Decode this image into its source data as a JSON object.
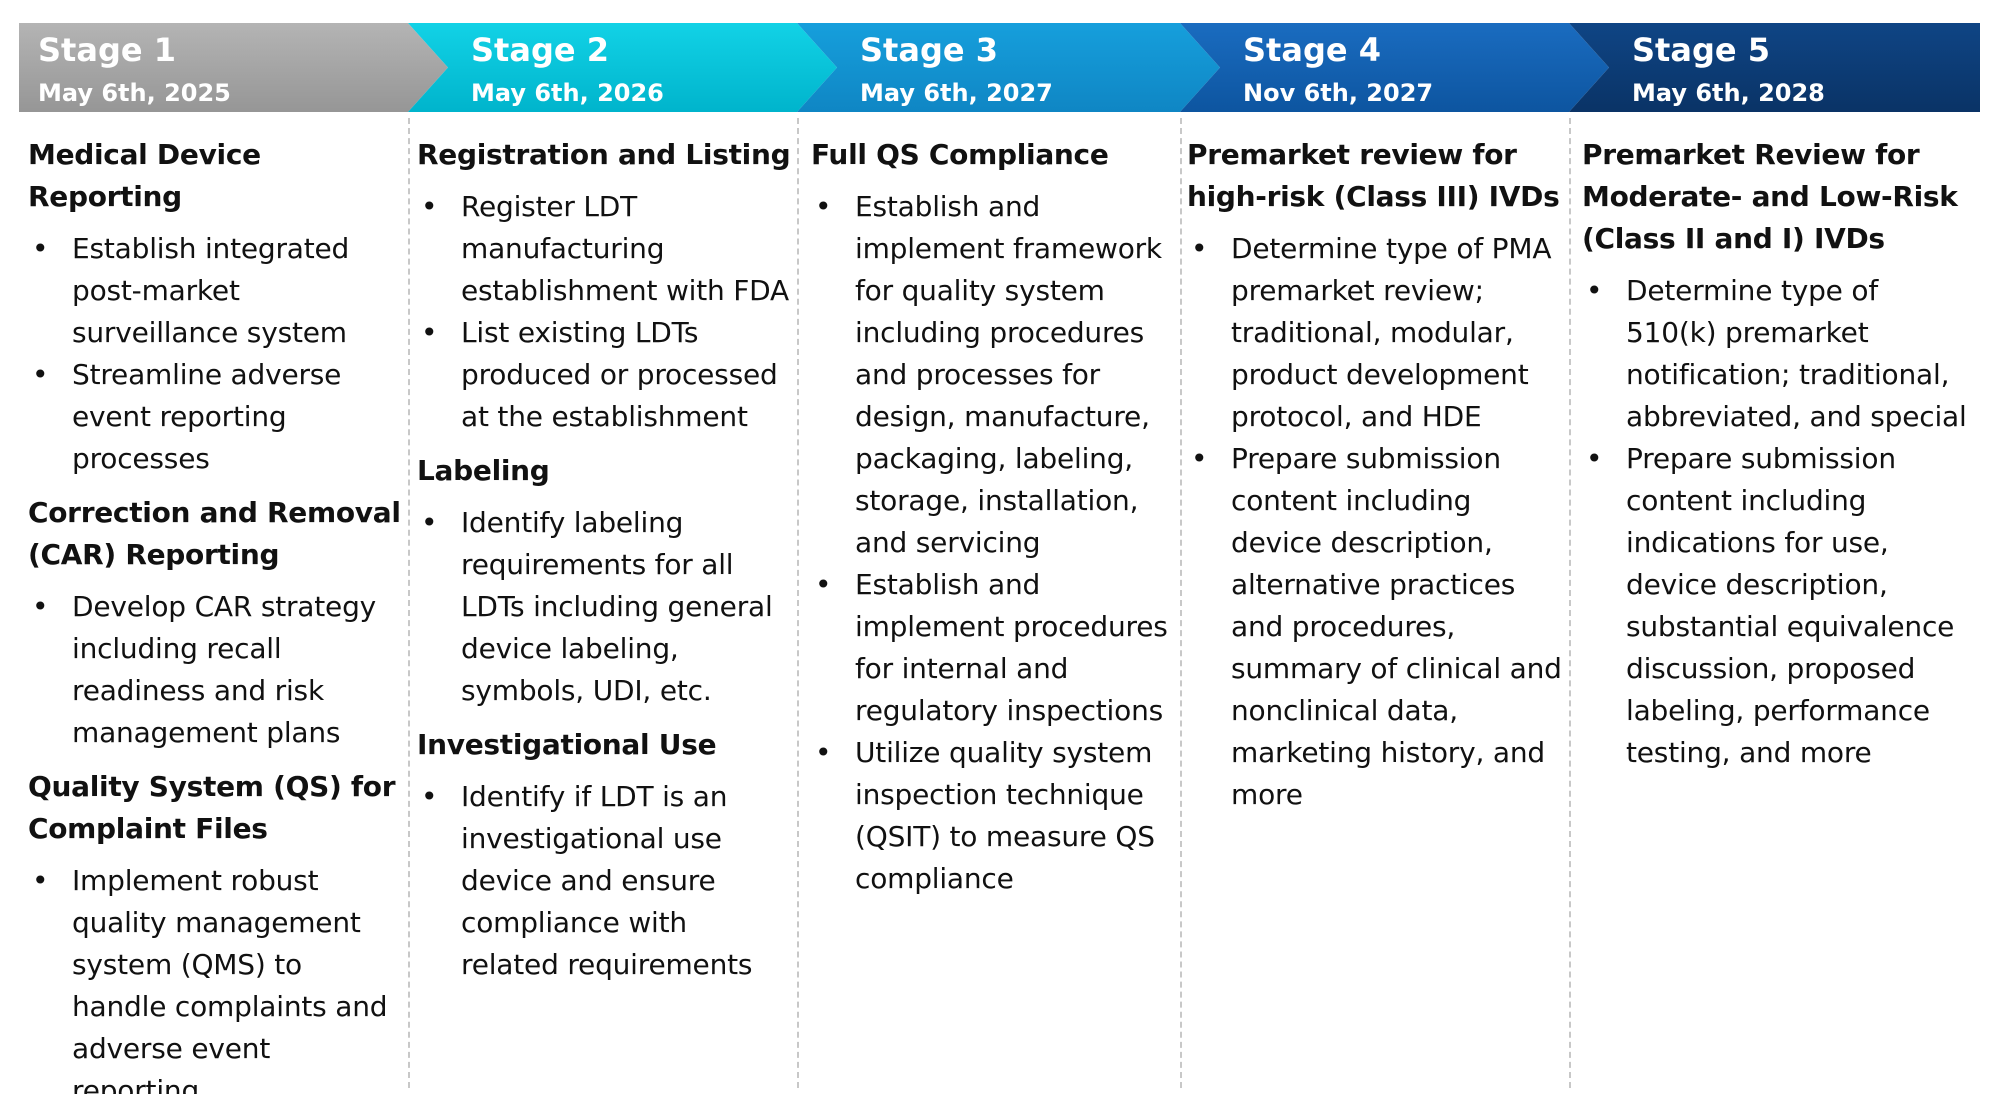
{
  "stages": [
    {
      "title": "Stage 1",
      "date": "May 6th, 2025",
      "sections": [
        {
          "heading": "Medical Device Reporting",
          "bullets": [
            "Establish integrated post-market surveillance system",
            "Streamline adverse event reporting processes"
          ]
        },
        {
          "heading": "Correction and Removal (CAR) Reporting",
          "bullets": [
            "Develop CAR strategy including recall readiness and risk management plans"
          ]
        },
        {
          "heading": "Quality System (QS)  for Complaint Files",
          "bullets": [
            "Implement robust quality management system (QMS) to handle complaints and adverse event reporting"
          ]
        }
      ]
    },
    {
      "title": "Stage 2",
      "date": "May 6th, 2026",
      "sections": [
        {
          "heading": "Registration and Listing",
          "bullets": [
            "Register LDT manufacturing establishment with FDA",
            "List existing LDTs produced or processed at the establishment"
          ]
        },
        {
          "heading": "Labeling",
          "bullets": [
            "Identify labeling requirements for all LDTs including general device labeling, symbols, UDI, etc."
          ]
        },
        {
          "heading": "Investigational Use",
          "bullets": [
            "Identify if LDT is an investigational use device and ensure compliance with related requirements"
          ]
        }
      ]
    },
    {
      "title": "Stage 3",
      "date": "May 6th, 2027",
      "sections": [
        {
          "heading": "Full QS Compliance",
          "bullets": [
            "Establish and implement framework for quality system including procedures and processes for design, manufacture, packaging, labeling, storage, installation, and servicing",
            "Establish and implement procedures for internal and regulatory inspections",
            "Utilize quality system inspection technique (QSIT) to measure QS compliance"
          ]
        }
      ]
    },
    {
      "title": "Stage 4",
      "date": "Nov 6th, 2027",
      "sections": [
        {
          "heading": "Premarket review for high-risk (Class III) IVDs",
          "bullets": [
            "Determine type of PMA premarket review; traditional, modular, product development protocol, and HDE",
            "Prepare submission content including device description, alternative practices and procedures, summary of clinical and nonclinical data, marketing history, and more"
          ]
        }
      ]
    },
    {
      "title": "Stage 5",
      "date": "May 6th, 2028",
      "sections": [
        {
          "heading": "Premarket Review for Moderate- and Low-Risk (Class II and I) IVDs",
          "bullets": [
            "Determine type of 510(k) premarket notification; traditional, abbreviated, and special",
            "Prepare submission content including indications for use, device description, substantial equivalence discussion, proposed labeling, performance testing, and more"
          ]
        }
      ]
    }
  ]
}
